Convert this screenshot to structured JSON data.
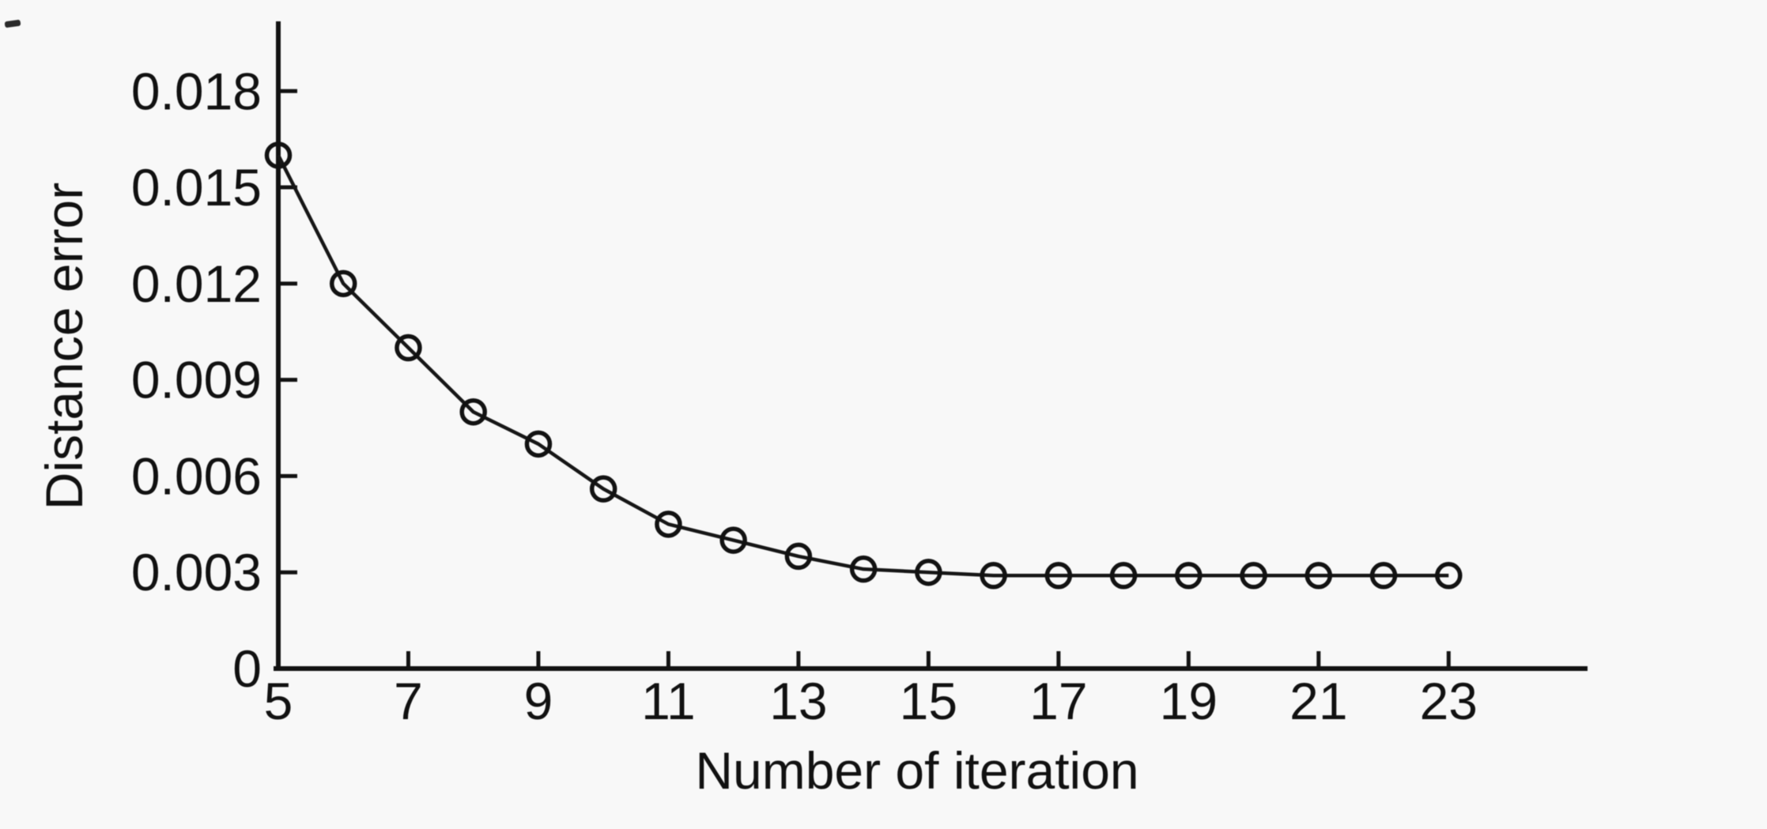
{
  "figure": {
    "background_color": "#f8f8f8",
    "ink_color": "#121212",
    "title": ""
  },
  "chart_data": {
    "type": "line",
    "title": "",
    "xlabel": "Number of iteration",
    "ylabel": "Distance error",
    "series": [
      {
        "name": "Distance error",
        "marker": "open-circle",
        "color": "#121212",
        "x": [
          5,
          6,
          7,
          8,
          9,
          10,
          11,
          12,
          13,
          14,
          15,
          16,
          17,
          18,
          19,
          20,
          21,
          22,
          23
        ],
        "y": [
          0.016,
          0.012,
          0.01,
          0.008,
          0.007,
          0.0056,
          0.0045,
          0.004,
          0.0035,
          0.0031,
          0.003,
          0.0029,
          0.0029,
          0.0029,
          0.0029,
          0.0029,
          0.0029,
          0.0029,
          0.0029
        ]
      }
    ],
    "x_ticks": [
      {
        "v": 5,
        "label": "5"
      },
      {
        "v": 7,
        "label": "7"
      },
      {
        "v": 9,
        "label": "9"
      },
      {
        "v": 11,
        "label": "11"
      },
      {
        "v": 13,
        "label": "13"
      },
      {
        "v": 15,
        "label": "15"
      },
      {
        "v": 17,
        "label": "17"
      },
      {
        "v": 19,
        "label": "19"
      },
      {
        "v": 21,
        "label": "21"
      },
      {
        "v": 23,
        "label": "23"
      }
    ],
    "y_ticks": [
      {
        "v": 0,
        "label": "0"
      },
      {
        "v": 0.003,
        "label": "0.003"
      },
      {
        "v": 0.006,
        "label": "0.006"
      },
      {
        "v": 0.009,
        "label": "0.009"
      },
      {
        "v": 0.012,
        "label": "0.012"
      },
      {
        "v": 0.015,
        "label": "0.015"
      },
      {
        "v": 0.018,
        "label": "0.018"
      }
    ],
    "xlim": [
      5,
      25.1
    ],
    "ylim": [
      0,
      0.0201
    ],
    "grid": false,
    "legend": null
  }
}
